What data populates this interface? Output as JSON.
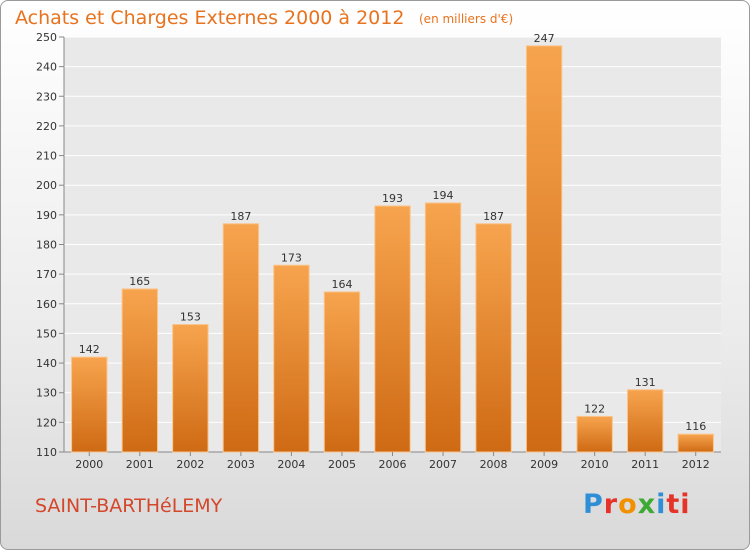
{
  "header": {
    "title": "Achats et Charges Externes 2000 à 2012",
    "unit_note": "(en milliers d'€)"
  },
  "footer": {
    "commune": "SAINT-BARTHéLEMY",
    "logo_text": "Proxiti"
  },
  "colors": {
    "bar_top": "#f7a44e",
    "bar_bottom": "#cf6a14",
    "title": "#e8731f",
    "commune": "#d4472a",
    "plot_bg": "#e9e9e9",
    "grid": "#ffffff"
  },
  "chart_data": {
    "type": "bar",
    "title": "Achats et Charges Externes 2000 à 2012",
    "subtitle": "(en milliers d'€)",
    "xlabel": "",
    "ylabel": "",
    "categories": [
      "2000",
      "2001",
      "2002",
      "2003",
      "2004",
      "2005",
      "2006",
      "2007",
      "2008",
      "2009",
      "2010",
      "2011",
      "2012"
    ],
    "values": [
      142,
      165,
      153,
      187,
      173,
      164,
      193,
      194,
      187,
      247,
      122,
      131,
      116
    ],
    "ylim": [
      110,
      250
    ],
    "yticks": [
      110,
      120,
      130,
      140,
      150,
      160,
      170,
      180,
      190,
      200,
      210,
      220,
      230,
      240,
      250
    ],
    "grid": true,
    "legend": "none"
  }
}
